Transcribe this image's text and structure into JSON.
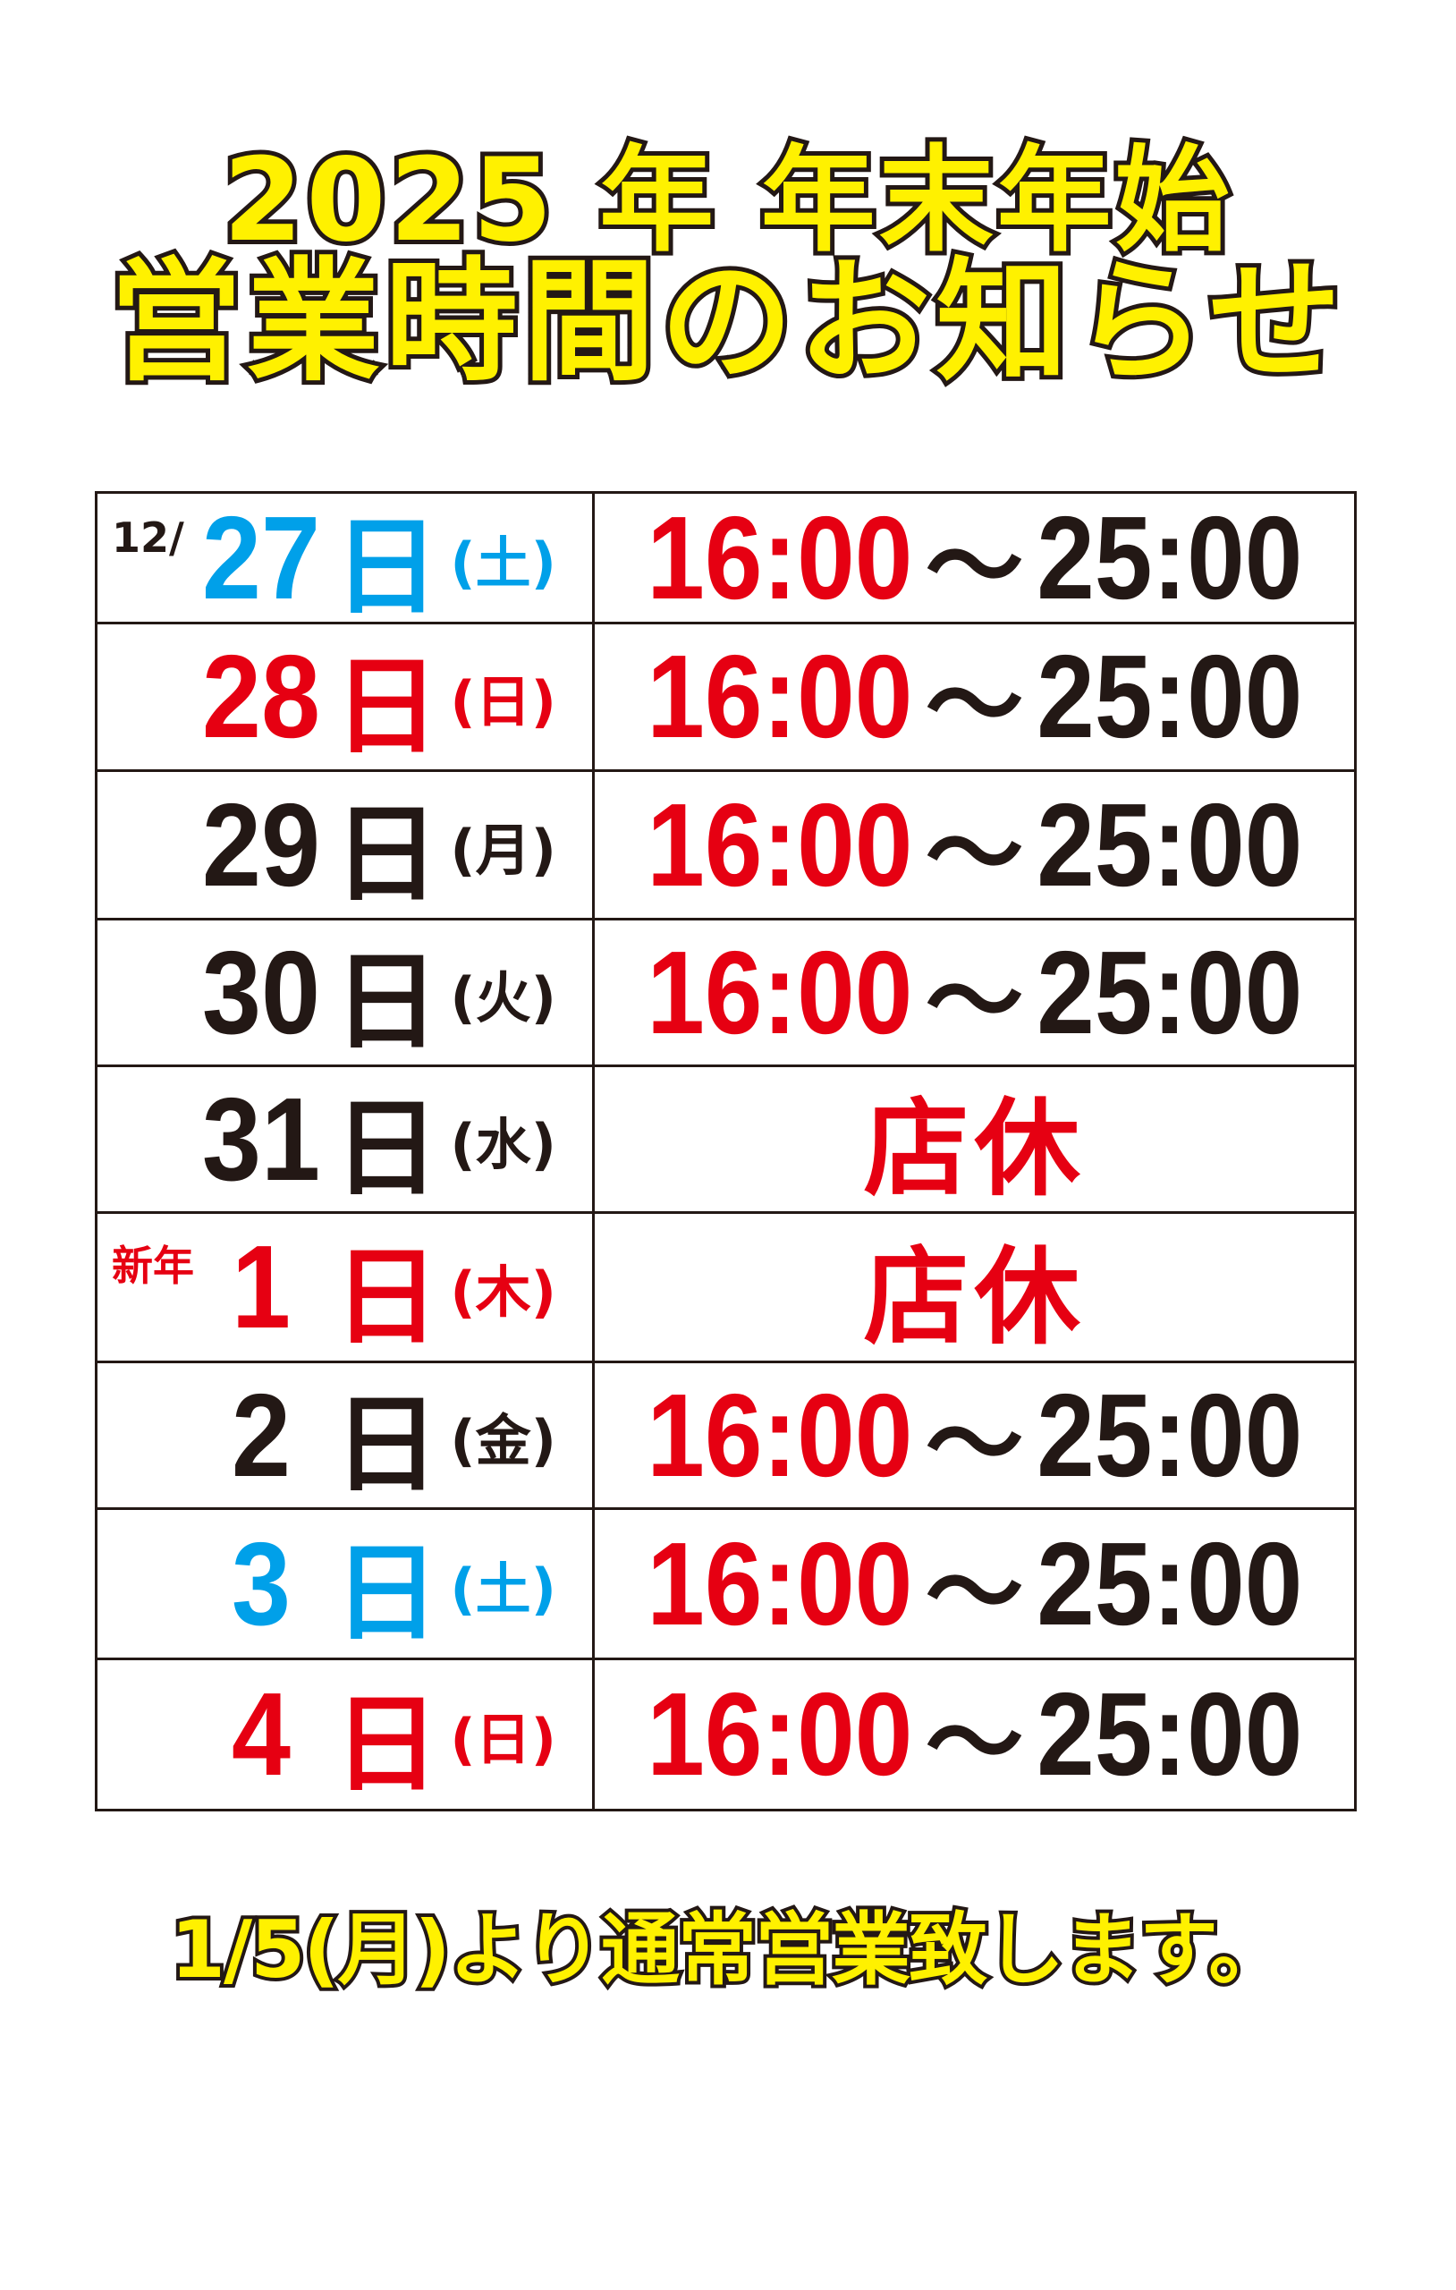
{
  "title": {
    "line1": "2025 年 年末年始",
    "line2": "営業時間のお知らせ"
  },
  "colors": {
    "blue": "#00a0e9",
    "red": "#e60012",
    "black": "#231815",
    "yellow": "#fff100"
  },
  "schedule": [
    {
      "prefix": "12/",
      "day": "27",
      "nichi": "日",
      "dow": "(土)",
      "color": "#00a0e9",
      "prefix_color": "#231815",
      "open": "16:00",
      "sep": "～",
      "close": "25:00",
      "closed": null
    },
    {
      "prefix": null,
      "day": "28",
      "nichi": "日",
      "dow": "(日)",
      "color": "#e60012",
      "open": "16:00",
      "sep": "～",
      "close": "25:00",
      "closed": null
    },
    {
      "prefix": null,
      "day": "29",
      "nichi": "日",
      "dow": "(月)",
      "color": "#231815",
      "open": "16:00",
      "sep": "～",
      "close": "25:00",
      "closed": null
    },
    {
      "prefix": null,
      "day": "30",
      "nichi": "日",
      "dow": "(火)",
      "color": "#231815",
      "open": "16:00",
      "sep": "～",
      "close": "25:00",
      "closed": null
    },
    {
      "prefix": null,
      "day": "31",
      "nichi": "日",
      "dow": "(水)",
      "color": "#231815",
      "open": null,
      "sep": null,
      "close": null,
      "closed": "店休"
    },
    {
      "prefix": "新年",
      "day": "1",
      "nichi": "日",
      "dow": "(木)",
      "color": "#e60012",
      "prefix_color": "#e60012",
      "open": null,
      "sep": null,
      "close": null,
      "closed": "店休"
    },
    {
      "prefix": null,
      "day": "2",
      "nichi": "日",
      "dow": "(金)",
      "color": "#231815",
      "open": "16:00",
      "sep": "～",
      "close": "25:00",
      "closed": null
    },
    {
      "prefix": null,
      "day": "3",
      "nichi": "日",
      "dow": "(土)",
      "color": "#00a0e9",
      "open": "16:00",
      "sep": "～",
      "close": "25:00",
      "closed": null
    },
    {
      "prefix": null,
      "day": "4",
      "nichi": "日",
      "dow": "(日)",
      "color": "#e60012",
      "open": "16:00",
      "sep": "～",
      "close": "25:00",
      "closed": null
    }
  ],
  "footer": "1/5(月)より通常営業致します。"
}
